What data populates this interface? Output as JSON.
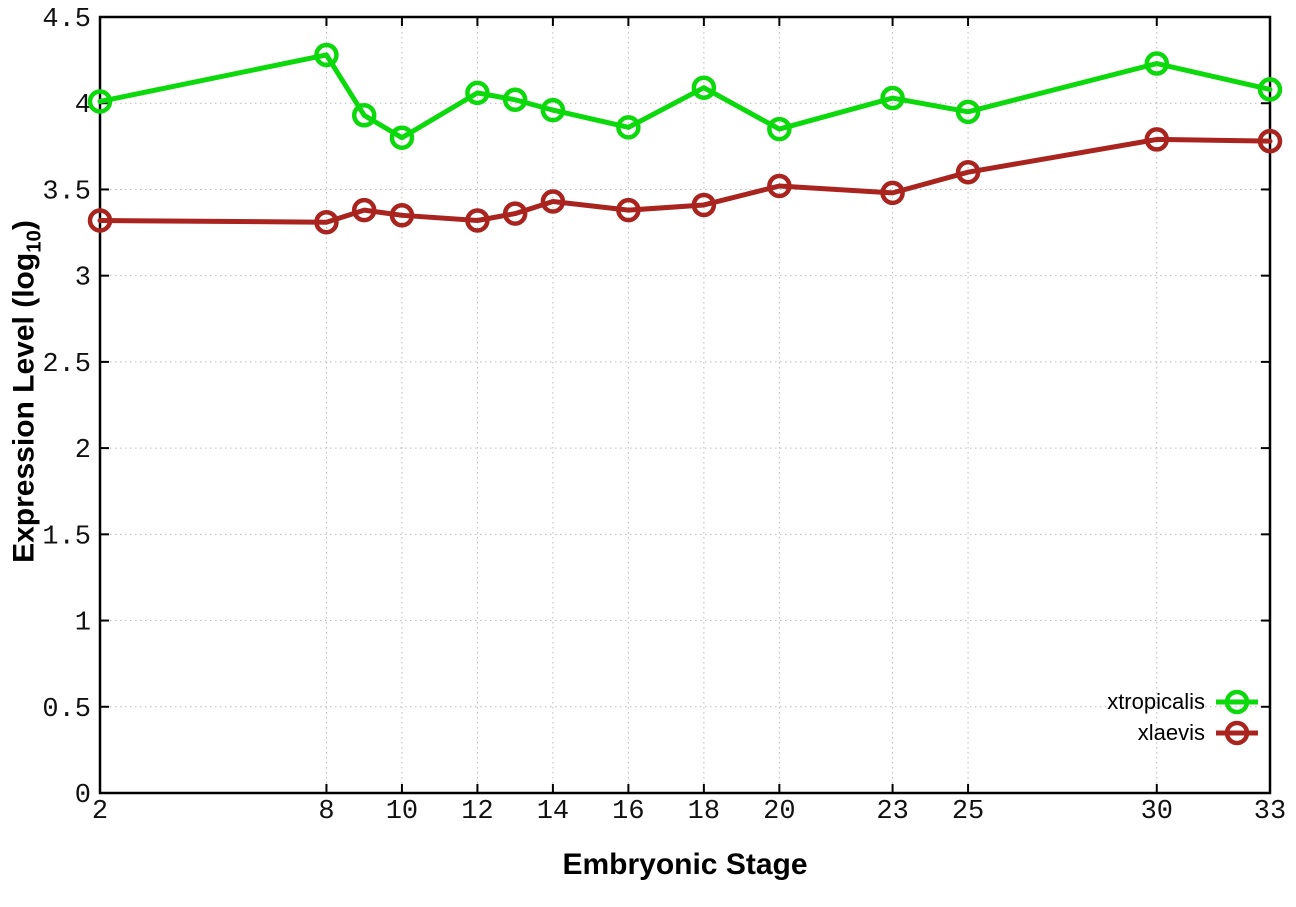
{
  "figure": {
    "background_color": "#ffffff",
    "border_color": "#000000",
    "grid_color": "#bcbcbc"
  },
  "chart_data": {
    "type": "line",
    "title": "",
    "xlabel": "Embryonic Stage",
    "ylabel": "Expression Level (log10)",
    "ylabel_parts": {
      "pre": "Expression Level (log",
      "sub": "10",
      "post": ")"
    },
    "x": [
      2,
      8,
      9,
      10,
      12,
      13,
      14,
      16,
      18,
      20,
      23,
      25,
      30,
      33
    ],
    "series": [
      {
        "name": "xtropicalis",
        "color": "#0bd90b",
        "marker": "open-circle",
        "line_width": 5,
        "values": [
          4.01,
          4.28,
          3.93,
          3.8,
          4.06,
          4.02,
          3.96,
          3.86,
          4.09,
          3.85,
          4.03,
          3.95,
          4.23,
          4.08
        ]
      },
      {
        "name": "xlaevis",
        "color": "#a9241e",
        "marker": "open-circle",
        "line_width": 5,
        "values": [
          3.32,
          3.31,
          3.38,
          3.35,
          3.32,
          3.36,
          3.43,
          3.38,
          3.41,
          3.52,
          3.48,
          3.6,
          3.79,
          3.78
        ]
      }
    ],
    "xlim": [
      2,
      33
    ],
    "ylim": [
      0,
      4.5
    ],
    "x_ticks": [
      2,
      8,
      10,
      12,
      14,
      16,
      18,
      20,
      23,
      25,
      30,
      33
    ],
    "x_tick_labels": [
      "2",
      "8",
      "10",
      "12",
      "14",
      "16",
      "18",
      "20",
      "23",
      "25",
      "30",
      "33"
    ],
    "y_ticks": [
      0,
      0.5,
      1,
      1.5,
      2,
      2.5,
      3,
      3.5,
      4,
      4.5
    ],
    "y_tick_labels": [
      "0",
      "0.5",
      "1",
      "1.5",
      "2",
      "2.5",
      "3",
      "3.5",
      "4",
      "4.5"
    ],
    "grid": true,
    "legend_position": "bottom-right"
  }
}
